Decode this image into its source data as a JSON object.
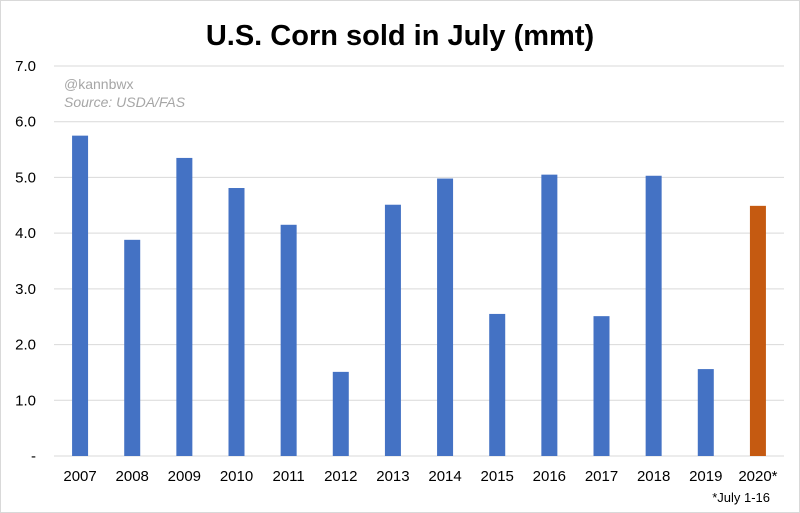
{
  "chart_data": {
    "type": "bar",
    "title": "U.S. Corn sold in July (mmt)",
    "credit": "@kannbwx",
    "source": "Source: USDA/FAS",
    "footnote": "*July 1-16",
    "categories": [
      "2007",
      "2008",
      "2009",
      "2010",
      "2011",
      "2012",
      "2013",
      "2014",
      "2015",
      "2016",
      "2017",
      "2018",
      "2019",
      "2020*"
    ],
    "values": [
      5.75,
      3.88,
      5.35,
      4.81,
      4.15,
      1.51,
      4.51,
      4.98,
      2.55,
      5.05,
      2.51,
      5.03,
      1.56,
      4.49
    ],
    "ylim": [
      0,
      7
    ],
    "yticks": [
      "-",
      "1.0",
      "2.0",
      "3.0",
      "4.0",
      "5.0",
      "6.0",
      "7.0"
    ],
    "grid": true,
    "legend": "none",
    "colors": {
      "default": "#4472c4",
      "highlight": "#c55a11",
      "grid": "#d9d9d9"
    },
    "highlight_category": "2020*"
  }
}
